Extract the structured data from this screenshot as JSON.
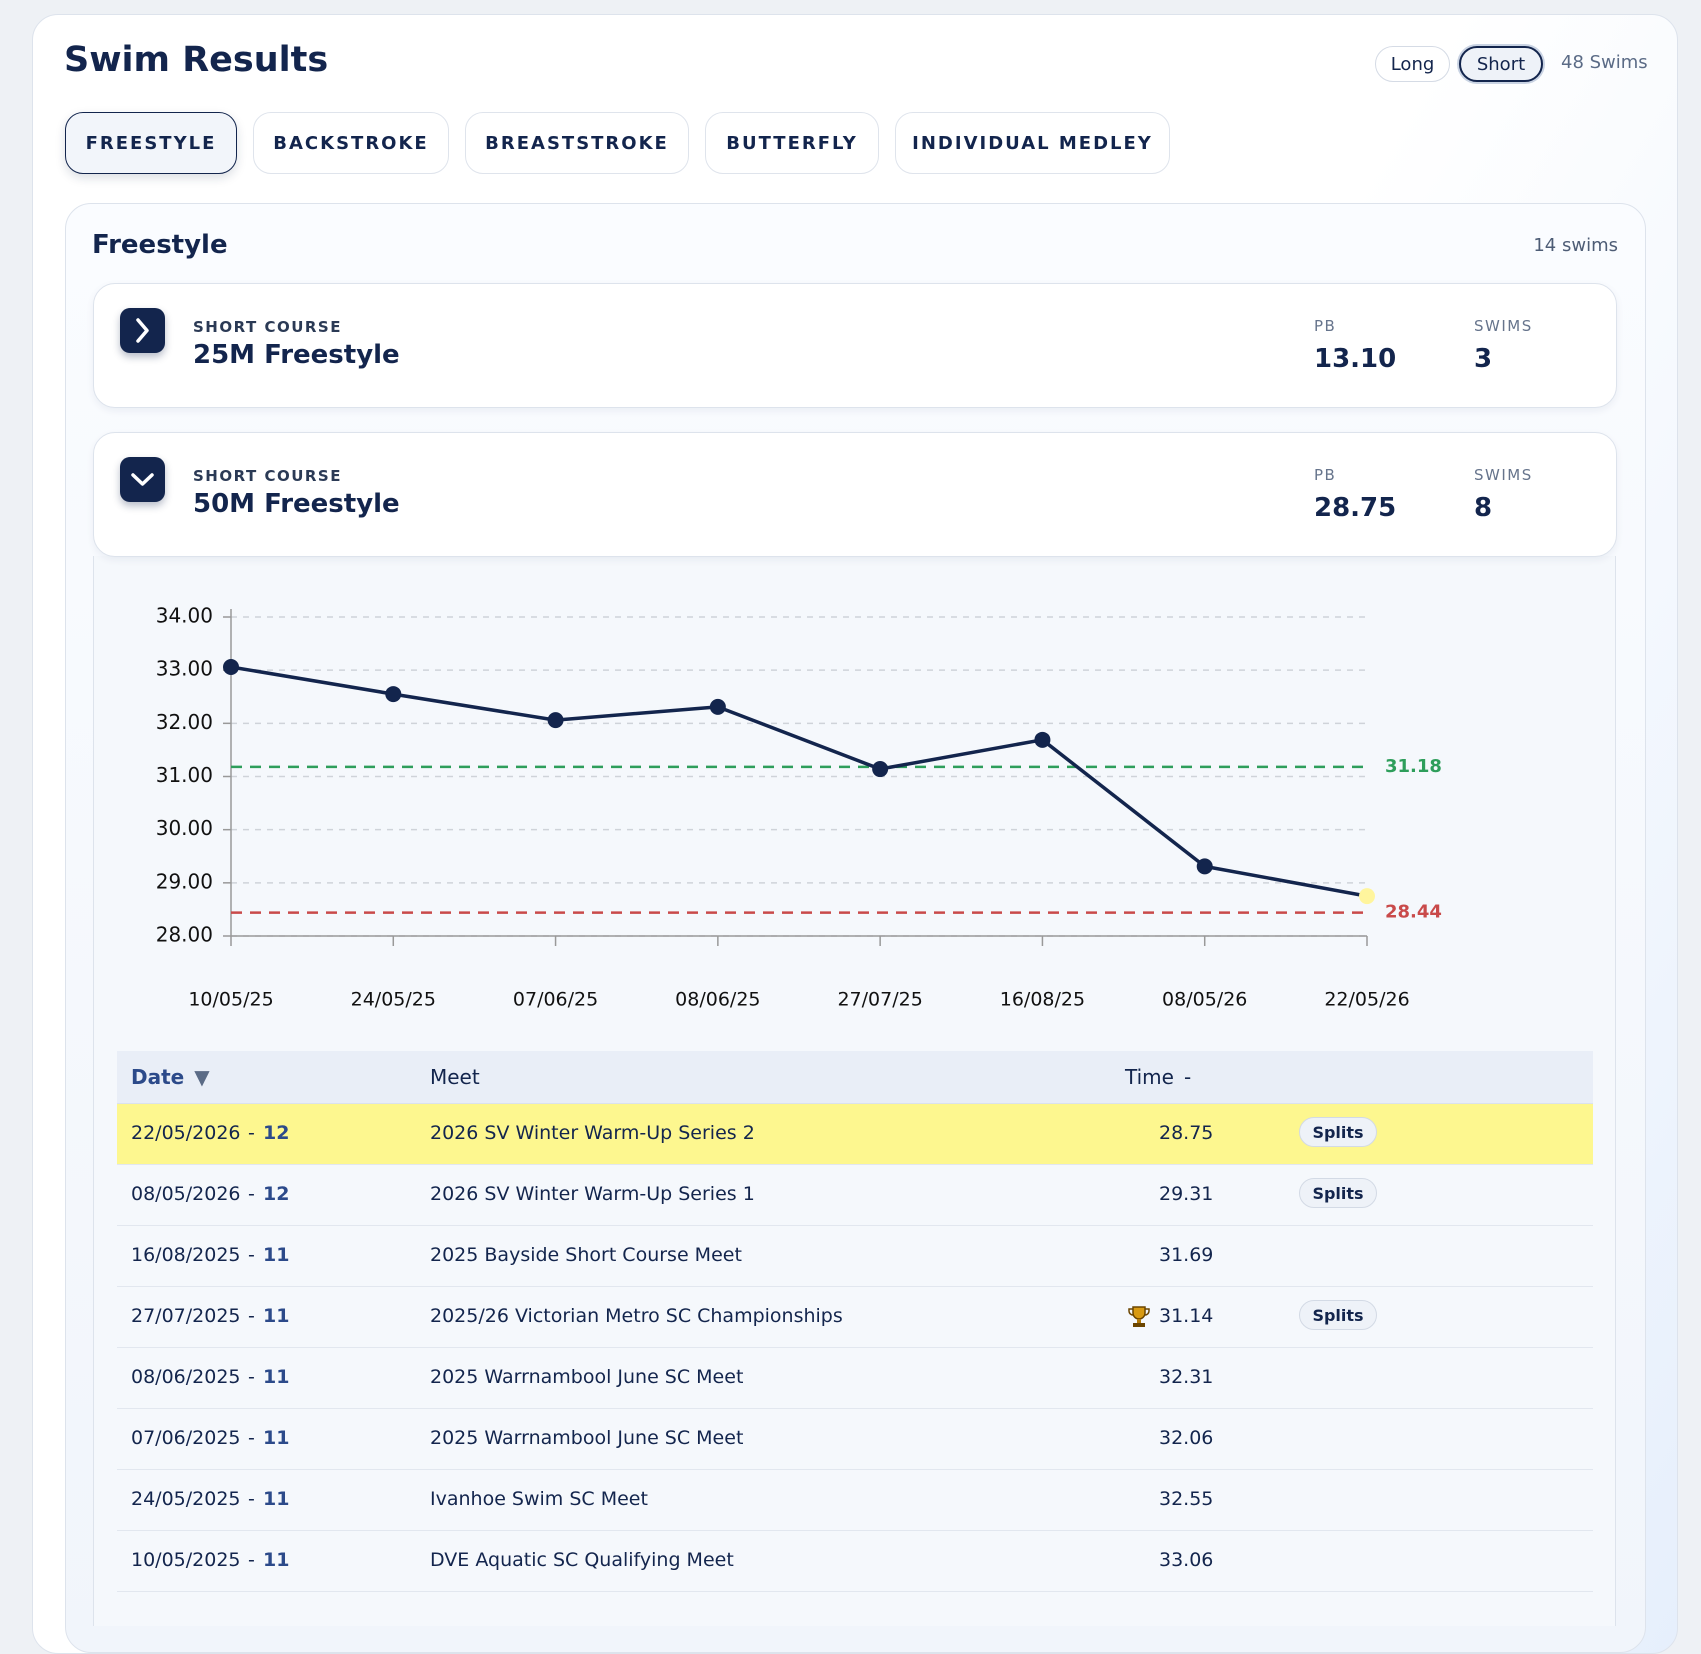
{
  "header": {
    "title": "Swim Results",
    "toggles": [
      {
        "label": "Long",
        "active": false
      },
      {
        "label": "Short",
        "active": true
      }
    ],
    "count": "48 Swims"
  },
  "tabs": [
    {
      "label": "FREESTYLE",
      "active": true
    },
    {
      "label": "BACKSTROKE",
      "active": false
    },
    {
      "label": "BREASTSTROKE",
      "active": false
    },
    {
      "label": "BUTTERFLY",
      "active": false
    },
    {
      "label": "INDIVIDUAL MEDLEY",
      "active": false
    }
  ],
  "section": {
    "title": "Freestyle",
    "count": "14 swims"
  },
  "events": [
    {
      "course": "SHORT COURSE",
      "name": "25M Freestyle",
      "pb_label": "PB",
      "pb": "13.10",
      "swims_label": "SWIMS",
      "swims": 3,
      "expanded": false
    },
    {
      "course": "SHORT COURSE",
      "name": "50M Freestyle",
      "pb_label": "PB",
      "pb": "28.75",
      "swims_label": "SWIMS",
      "swims": 8,
      "expanded": true
    }
  ],
  "chart_data": {
    "type": "line",
    "categories": [
      "10/05/25",
      "24/05/25",
      "07/06/25",
      "08/06/25",
      "27/07/25",
      "16/08/25",
      "08/05/26",
      "22/05/26"
    ],
    "series": [
      {
        "color": "#13254d",
        "highlight_color": "#fff59d",
        "values": [
          33.06,
          32.55,
          32.06,
          32.31,
          31.14,
          31.69,
          29.31,
          28.75
        ]
      }
    ],
    "ylim": [
      28,
      34
    ],
    "yticks": [
      {
        "value": 28,
        "label": "28.00"
      },
      {
        "value": 29,
        "label": "29.00"
      },
      {
        "value": 30,
        "label": "30.00"
      },
      {
        "value": 31,
        "label": "31.00"
      },
      {
        "value": 32,
        "label": "32.00"
      },
      {
        "value": 33,
        "label": "33.00"
      },
      {
        "value": 34,
        "label": "34.00"
      }
    ],
    "grid": true,
    "reference_lines": [
      {
        "value": 31.18,
        "color": "#2e9e5b"
      },
      {
        "value": 28.44,
        "color": "#c94a4a"
      }
    ]
  },
  "table": {
    "headers": [
      {
        "label": "Date",
        "sort": "▼"
      },
      {
        "label": "Meet"
      },
      {
        "label": "Time",
        "sort": "-"
      }
    ],
    "date_separator": "-",
    "rows": [
      {
        "date": "22/05/2026",
        "age": 12,
        "meet": "2026 SV Winter Warm-Up Series 2",
        "time": "28.75",
        "splits": "Splits",
        "highlight": true
      },
      {
        "date": "08/05/2026",
        "age": 12,
        "meet": "2026 SV Winter Warm-Up Series 1",
        "time": "29.31",
        "splits": "Splits"
      },
      {
        "date": "16/08/2025",
        "age": 11,
        "meet": "2025 Bayside Short Course Meet",
        "time": "31.69"
      },
      {
        "date": "27/07/2025",
        "age": 11,
        "meet": "2025/26 Victorian Metro SC Championships",
        "time": "31.14",
        "splits": "Splits",
        "trophy": true
      },
      {
        "date": "08/06/2025",
        "age": 11,
        "meet": "2025 Warrnambool June SC Meet",
        "time": "32.31"
      },
      {
        "date": "07/06/2025",
        "age": 11,
        "meet": "2025 Warrnambool June SC Meet",
        "time": "32.06"
      },
      {
        "date": "24/05/2025",
        "age": 11,
        "meet": "Ivanhoe Swim SC Meet",
        "time": "32.55"
      },
      {
        "date": "10/05/2025",
        "age": 11,
        "meet": "DVE Aquatic SC Qualifying Meet",
        "time": "33.06"
      }
    ]
  }
}
